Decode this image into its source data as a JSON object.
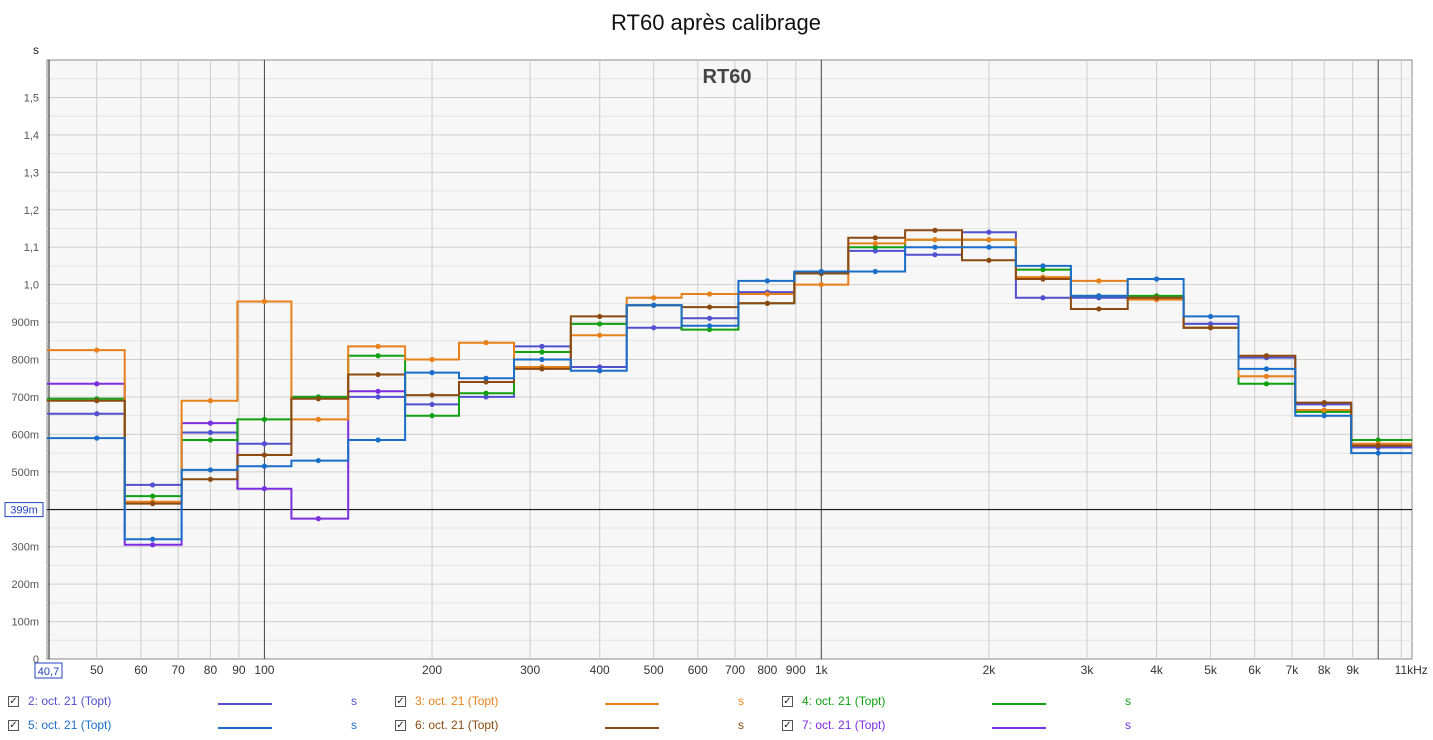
{
  "chart_data": {
    "type": "line",
    "title": "RT60 après calibrage",
    "inner_title": "RT60",
    "y_unit_label": "s",
    "x_unit_label": "kHz",
    "xlim": [
      40.7,
      11500
    ],
    "ylim": [
      0,
      1.6
    ],
    "x_scale": "log",
    "grid": true,
    "cursor_value": 0.399,
    "cursor_label": "399m",
    "x_start_label": "40,7",
    "y_ticks": [
      {
        "v": 0,
        "label": "0"
      },
      {
        "v": 0.1,
        "label": "100m"
      },
      {
        "v": 0.2,
        "label": "200m"
      },
      {
        "v": 0.3,
        "label": "300m"
      },
      {
        "v": 0.5,
        "label": "500m"
      },
      {
        "v": 0.6,
        "label": "600m"
      },
      {
        "v": 0.7,
        "label": "700m"
      },
      {
        "v": 0.8,
        "label": "800m"
      },
      {
        "v": 0.9,
        "label": "900m"
      },
      {
        "v": 1.0,
        "label": "1,0"
      },
      {
        "v": 1.1,
        "label": "1,1"
      },
      {
        "v": 1.2,
        "label": "1,2"
      },
      {
        "v": 1.3,
        "label": "1,3"
      },
      {
        "v": 1.4,
        "label": "1,4"
      },
      {
        "v": 1.5,
        "label": "1,5"
      }
    ],
    "y_top_label": "s",
    "x_ticks": [
      {
        "v": 50,
        "label": "50"
      },
      {
        "v": 60,
        "label": "60"
      },
      {
        "v": 70,
        "label": "70"
      },
      {
        "v": 80,
        "label": "80"
      },
      {
        "v": 90,
        "label": "90"
      },
      {
        "v": 100,
        "label": "100"
      },
      {
        "v": 200,
        "label": "200"
      },
      {
        "v": 300,
        "label": "300"
      },
      {
        "v": 400,
        "label": "400"
      },
      {
        "v": 500,
        "label": "500"
      },
      {
        "v": 600,
        "label": "600"
      },
      {
        "v": 700,
        "label": "700"
      },
      {
        "v": 800,
        "label": "800"
      },
      {
        "v": 900,
        "label": "900"
      },
      {
        "v": 1000,
        "label": "1k"
      },
      {
        "v": 2000,
        "label": "2k"
      },
      {
        "v": 3000,
        "label": "3k"
      },
      {
        "v": 4000,
        "label": "4k"
      },
      {
        "v": 5000,
        "label": "5k"
      },
      {
        "v": 6000,
        "label": "6k"
      },
      {
        "v": 7000,
        "label": "7k"
      },
      {
        "v": 8000,
        "label": "8k"
      },
      {
        "v": 9000,
        "label": "9k"
      },
      {
        "v": 11000,
        "label": "11kHz"
      }
    ],
    "x": [
      50,
      63,
      80,
      100,
      125,
      160,
      200,
      250,
      315,
      400,
      500,
      630,
      800,
      1000,
      1250,
      1600,
      2000,
      2500,
      3150,
      4000,
      5000,
      6300,
      8000,
      10000
    ],
    "series": [
      {
        "name": "2: oct. 21 (Topt)",
        "color": "#5050d0",
        "values": [
          0.655,
          0.465,
          0.605,
          0.575,
          0.7,
          0.7,
          0.68,
          0.7,
          0.835,
          0.78,
          0.885,
          0.91,
          0.98,
          1.03,
          1.09,
          1.08,
          1.14,
          0.965,
          0.965,
          0.965,
          0.895,
          0.805,
          0.68,
          0.565
        ]
      },
      {
        "name": "3: oct. 21 (Topt)",
        "color": "#e8801a",
        "values": [
          0.825,
          0.42,
          0.69,
          0.955,
          0.64,
          0.835,
          0.8,
          0.845,
          0.78,
          0.865,
          0.965,
          0.975,
          0.975,
          1.0,
          1.11,
          1.12,
          1.12,
          1.02,
          1.01,
          0.96,
          0.885,
          0.755,
          0.665,
          0.575
        ]
      },
      {
        "name": "4: oct. 21 (Topt)",
        "color": "#10a010",
        "values": [
          0.695,
          0.435,
          0.585,
          0.64,
          0.7,
          0.81,
          0.65,
          0.71,
          0.82,
          0.895,
          0.945,
          0.88,
          0.95,
          1.03,
          1.1,
          1.12,
          1.12,
          1.04,
          0.97,
          0.97,
          0.885,
          0.735,
          0.66,
          0.585
        ]
      },
      {
        "name": "5: oct. 21 (Topt)",
        "color": "#1a6ec8",
        "values": [
          0.59,
          0.32,
          0.505,
          0.515,
          0.53,
          0.585,
          0.765,
          0.75,
          0.8,
          0.77,
          0.945,
          0.89,
          1.01,
          1.035,
          1.035,
          1.1,
          1.1,
          1.05,
          0.97,
          1.015,
          0.915,
          0.775,
          0.65,
          0.55
        ]
      },
      {
        "name": "6: oct. 21 (Topt)",
        "color": "#8c4a10",
        "values": [
          0.69,
          0.415,
          0.48,
          0.545,
          0.695,
          0.76,
          0.705,
          0.74,
          0.775,
          0.915,
          0.945,
          0.94,
          0.95,
          1.03,
          1.125,
          1.145,
          1.065,
          1.015,
          0.935,
          0.965,
          0.885,
          0.81,
          0.685,
          0.57
        ]
      },
      {
        "name": "7: oct. 21 (Topt)",
        "color": "#7a2ee0",
        "values": [
          0.735,
          0.305,
          0.63,
          0.455,
          0.375,
          0.715,
          null,
          null,
          null,
          null,
          null,
          null,
          null,
          null,
          null,
          null,
          null,
          null,
          null,
          null,
          null,
          null,
          null,
          null
        ]
      }
    ]
  },
  "legend": {
    "items": [
      {
        "label": "2: oct. 21 (Topt)",
        "unit": "s",
        "color": "#5050d0"
      },
      {
        "label": "3: oct. 21 (Topt)",
        "unit": "s",
        "color": "#e8801a"
      },
      {
        "label": "4: oct. 21 (Topt)",
        "unit": "s",
        "color": "#10a010"
      },
      {
        "label": "5: oct. 21 (Topt)",
        "unit": "s",
        "color": "#1a6ec8"
      },
      {
        "label": "6: oct. 21 (Topt)",
        "unit": "s",
        "color": "#8c4a10"
      },
      {
        "label": "7: oct. 21 (Topt)",
        "unit": "s",
        "color": "#7a2ee0"
      }
    ]
  }
}
